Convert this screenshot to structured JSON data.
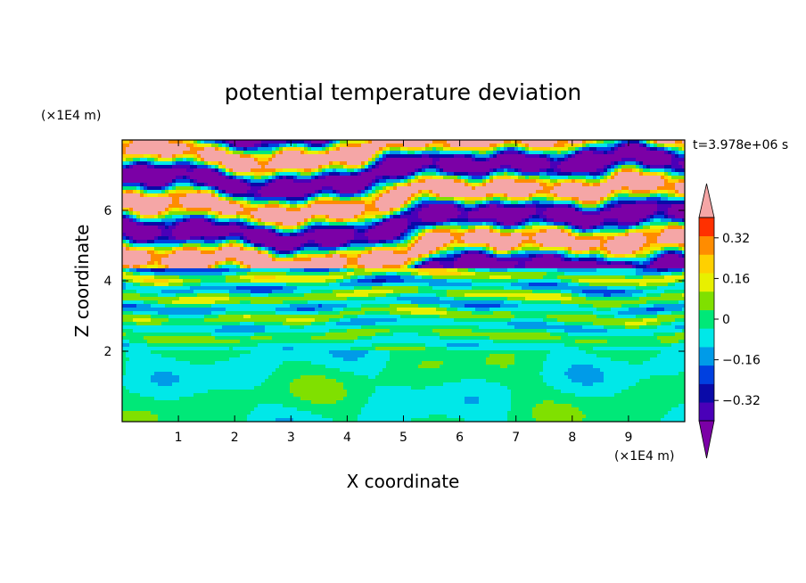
{
  "chart_data": {
    "type": "heatmap",
    "title": "potential temperature deviation",
    "time_label": "t=3.978e+06 s",
    "xlabel": "X coordinate",
    "ylabel": "Z coordinate",
    "x_unit": "(×1E4 m)",
    "y_unit": "(×1E4 m)",
    "xlim": [
      0,
      10
    ],
    "ylim": [
      0,
      8
    ],
    "x_ticks": [
      1,
      2,
      3,
      4,
      5,
      6,
      7,
      8,
      9
    ],
    "y_ticks": [
      2,
      4,
      6
    ],
    "colorbar": {
      "levels": [
        -0.48,
        -0.4,
        -0.32,
        -0.24,
        -0.16,
        -0.08,
        0,
        0.08,
        0.16,
        0.24,
        0.32,
        0.4,
        0.48
      ],
      "colors": [
        "#7b00a6",
        "#4a00b8",
        "#0a0aa8",
        "#0040e0",
        "#009be8",
        "#00e8e8",
        "#00e878",
        "#80e000",
        "#e8f000",
        "#ffd000",
        "#ff8c00",
        "#ff3000",
        "#f5a6a6"
      ],
      "labels": [
        "0.32",
        "0.16",
        "0",
        "−0.16",
        "−0.32"
      ],
      "label_values": [
        0.32,
        0.16,
        0,
        -0.16,
        -0.32
      ],
      "extend": "both"
    },
    "field_description": [
      {
        "z_range": [
          0,
          2.0
        ],
        "pattern": "mostly near zero (green / light green)"
      },
      {
        "z_range": [
          2.0,
          4.4
        ],
        "pattern": "mixed small deviations (cyan, green, blue, some orange)"
      },
      {
        "z_range": [
          4.4,
          8.0
        ],
        "pattern": "alternating strong positive (pink) and strong negative (purple) layers"
      }
    ]
  }
}
